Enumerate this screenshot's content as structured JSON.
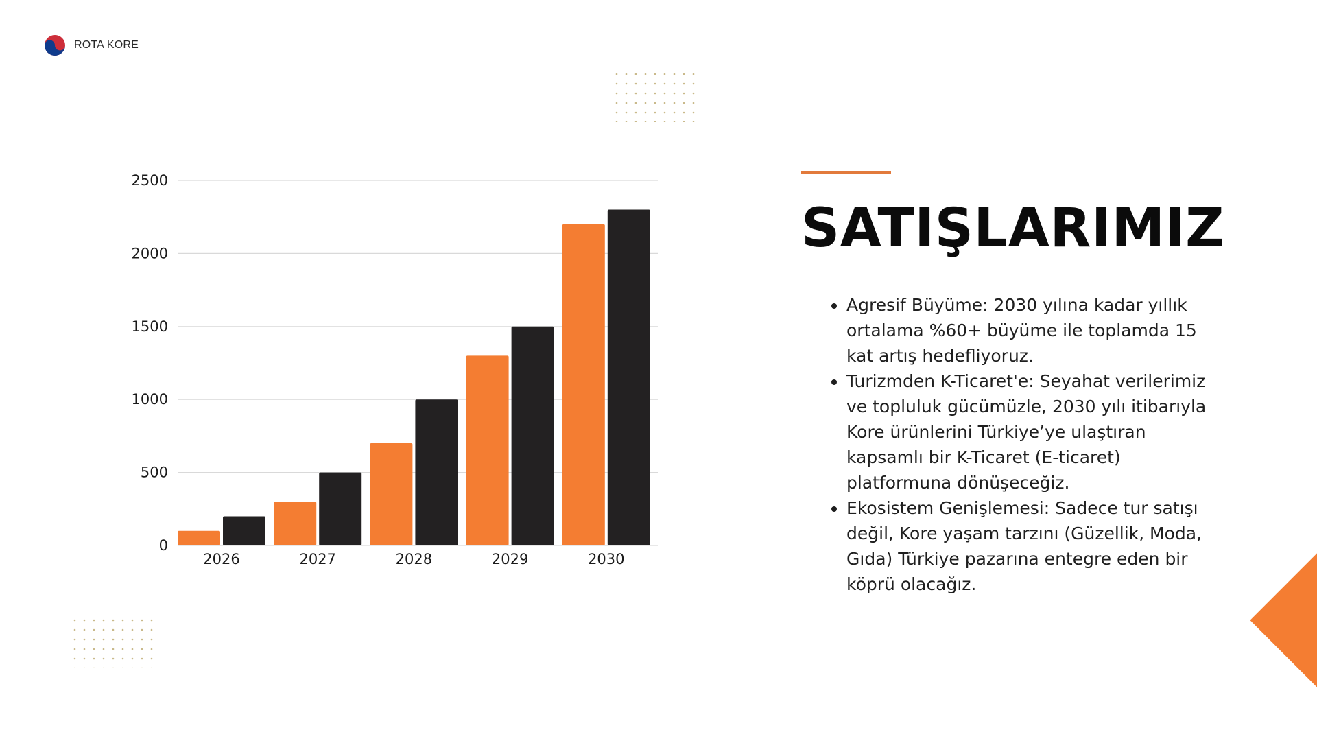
{
  "brand": {
    "name": "ROTA KORE",
    "logo_icon": "taegeuk-icon"
  },
  "slide": {
    "title": "SATIŞLARIMIZ",
    "accent_color": "#e27a3c",
    "bullets": [
      "Agresif Büyüme: 2030 yılına kadar yıllık ortalama %60+ büyüme ile toplamda 15 kat artış hedefliyoruz.",
      "Turizmden K-Ticaret'e: Seyahat verilerimiz ve topluluk gücümüzle, 2030 yılı itibarıyla Kore ürünlerini Türkiye’ye ulaştıran kapsamlı bir K-Ticaret (E-ticaret) platformuna dönüşeceğiz.",
      "Ekosistem Genişlemesi: Sadece tur satışı değil, Kore yaşam tarzını (Güzellik, Moda, Gıda) Türkiye pazarına entegre eden bir köprü olacağız."
    ]
  },
  "chart_data": {
    "type": "bar",
    "categories": [
      "2026",
      "2027",
      "2028",
      "2029",
      "2030"
    ],
    "series": [
      {
        "values": [
          100,
          300,
          700,
          1300,
          2200
        ],
        "color": "#f47d32"
      },
      {
        "values": [
          200,
          500,
          1000,
          1500,
          2300
        ],
        "color": "#232122"
      }
    ],
    "ylim": [
      0,
      2500
    ],
    "yticks": [
      "0",
      "500",
      "1000",
      "1500",
      "2000",
      "2500"
    ],
    "grid": true,
    "legend": "none"
  }
}
